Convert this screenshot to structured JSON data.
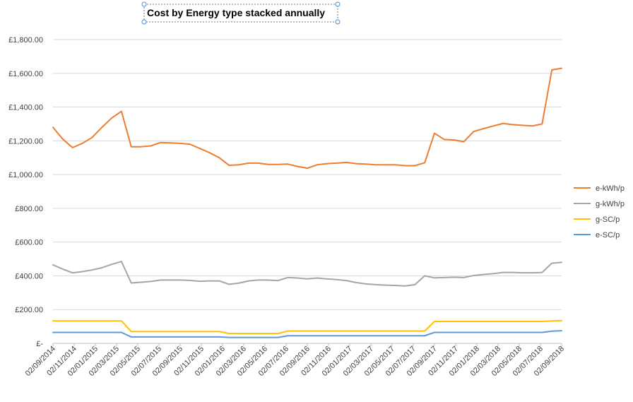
{
  "chart_data": {
    "type": "line",
    "title": "Cost by Energy type stacked annually",
    "xlabel": "",
    "ylabel": "",
    "ylim": [
      0,
      1800
    ],
    "y_ticks": [
      {
        "value": 0,
        "label": "£-"
      },
      {
        "value": 200,
        "label": "£200.00"
      },
      {
        "value": 400,
        "label": "£400.00"
      },
      {
        "value": 600,
        "label": "£600.00"
      },
      {
        "value": 800,
        "label": "£800.00"
      },
      {
        "value": 1000,
        "label": "£1,000.00"
      },
      {
        "value": 1200,
        "label": "£1,200.00"
      },
      {
        "value": 1400,
        "label": "£1,400.00"
      },
      {
        "value": 1600,
        "label": "£1,600.00"
      },
      {
        "value": 1800,
        "label": "£1,800.00"
      }
    ],
    "x_tick_labels": [
      "02/09/2014",
      "02/11/2014",
      "02/01/2015",
      "02/03/2015",
      "02/05/2015",
      "02/07/2015",
      "02/09/2015",
      "02/11/2015",
      "02/01/2016",
      "02/03/2016",
      "02/05/2016",
      "02/07/2016",
      "02/09/2016",
      "02/11/2016",
      "02/01/2017",
      "02/03/2017",
      "02/05/2017",
      "02/07/2017",
      "02/09/2017",
      "02/11/2017",
      "02/01/2018",
      "02/03/2018",
      "02/05/2018",
      "02/07/2018",
      "02/09/2018"
    ],
    "grid": true,
    "legend_position": "right",
    "series": [
      {
        "name": "e-kWh/p",
        "color": "#ED7D31",
        "values": [
          1280,
          1210,
          1160,
          1185,
          1220,
          1280,
          1335,
          1375,
          1165,
          1165,
          1170,
          1190,
          1188,
          1185,
          1180,
          1155,
          1130,
          1100,
          1055,
          1058,
          1068,
          1068,
          1060,
          1060,
          1062,
          1048,
          1038,
          1058,
          1065,
          1068,
          1072,
          1065,
          1062,
          1058,
          1058,
          1058,
          1053,
          1053,
          1070,
          1245,
          1208,
          1205,
          1195,
          1255,
          1272,
          1288,
          1303,
          1296,
          1292,
          1288,
          1300,
          1620,
          1630
        ]
      },
      {
        "name": "g-kWh/p",
        "color": "#A5A5A5",
        "values": [
          465,
          440,
          418,
          425,
          435,
          448,
          468,
          485,
          358,
          362,
          367,
          375,
          375,
          375,
          373,
          368,
          370,
          370,
          350,
          357,
          370,
          375,
          375,
          372,
          390,
          387,
          382,
          387,
          382,
          378,
          372,
          360,
          352,
          348,
          345,
          343,
          340,
          348,
          400,
          388,
          390,
          392,
          390,
          402,
          408,
          413,
          420,
          420,
          418,
          418,
          420,
          475,
          480
        ]
      },
      {
        "name": "g-SC/p",
        "color": "#FFC000",
        "values": [
          133,
          133,
          133,
          133,
          133,
          133,
          133,
          133,
          70,
          70,
          70,
          70,
          70,
          70,
          70,
          70,
          70,
          70,
          58,
          58,
          58,
          58,
          58,
          58,
          73,
          73,
          73,
          73,
          73,
          73,
          73,
          73,
          73,
          73,
          73,
          73,
          73,
          73,
          73,
          130,
          130,
          130,
          130,
          130,
          130,
          130,
          130,
          130,
          130,
          130,
          130,
          133,
          135
        ]
      },
      {
        "name": "e-SC/p",
        "color": "#5B9BD5",
        "values": [
          65,
          65,
          65,
          65,
          65,
          65,
          65,
          65,
          38,
          38,
          38,
          38,
          38,
          38,
          38,
          38,
          38,
          38,
          35,
          35,
          35,
          35,
          35,
          35,
          45,
          45,
          45,
          45,
          45,
          45,
          45,
          45,
          45,
          45,
          45,
          45,
          45,
          45,
          45,
          65,
          65,
          65,
          65,
          65,
          65,
          65,
          65,
          65,
          65,
          65,
          65,
          72,
          75
        ]
      }
    ]
  }
}
